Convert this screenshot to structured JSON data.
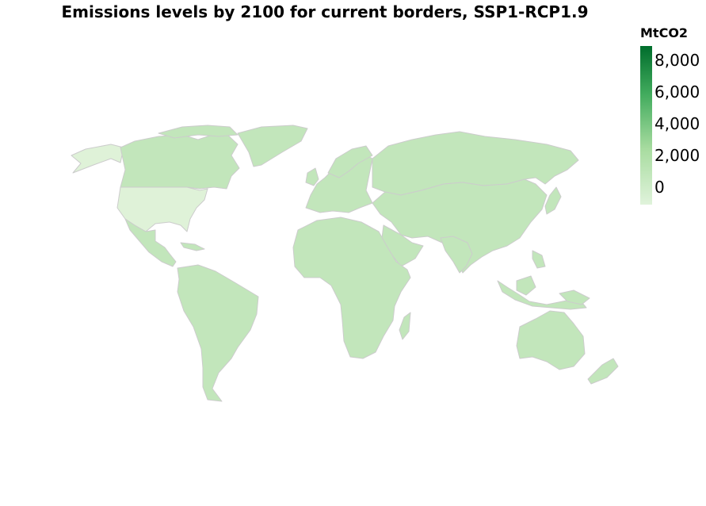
{
  "title": "Emissions levels by 2100 for current borders, SSP1-RCP1.9",
  "legend": {
    "title": "MtCO2",
    "ticks": [
      "8,000",
      "6,000",
      "4,000",
      "2,000",
      "0"
    ],
    "color_low": "#e0f3db",
    "color_high": "#006d2c"
  },
  "colors": {
    "base": "#c2e6bb",
    "light": "#dff2d8",
    "border": "#cccccc"
  }
}
